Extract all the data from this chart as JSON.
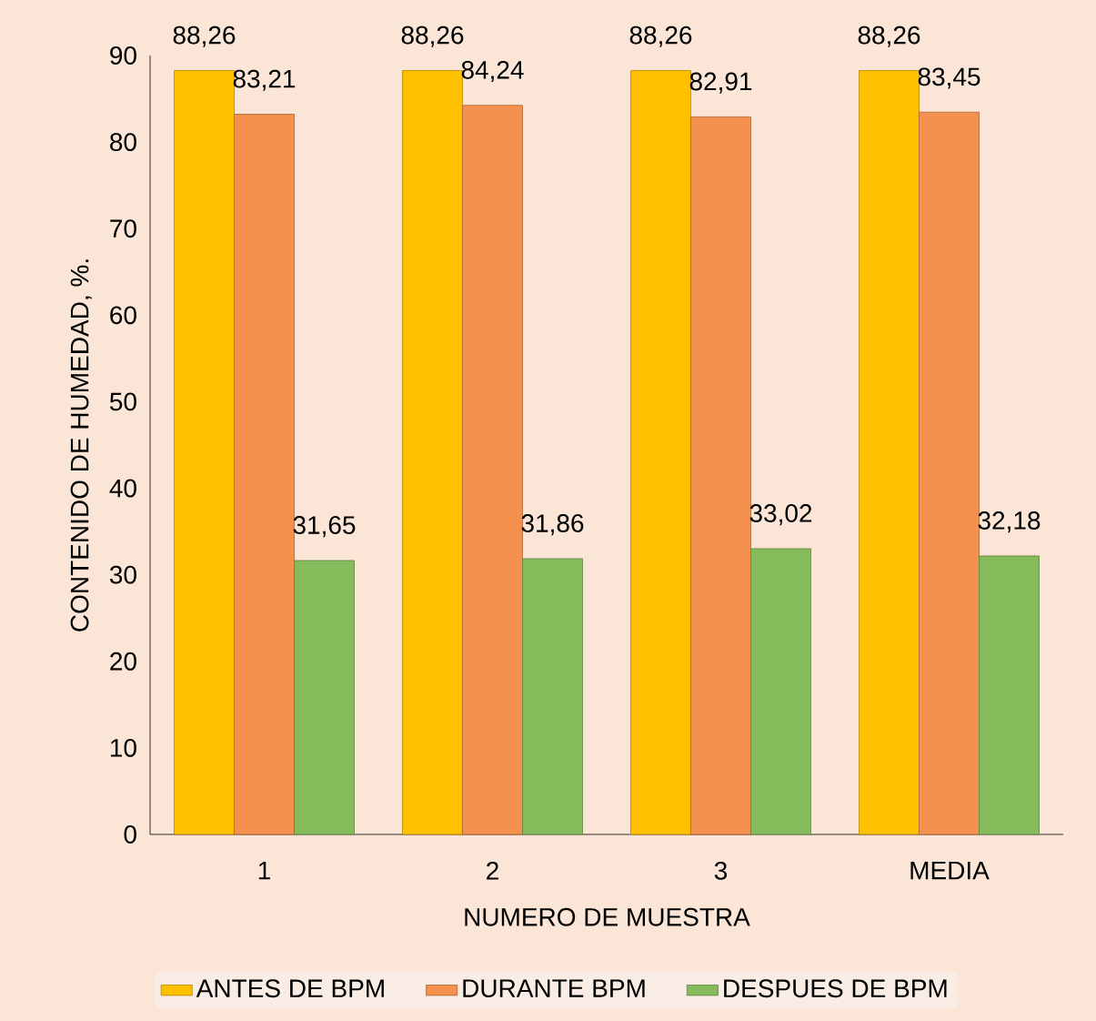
{
  "chart_data": {
    "type": "bar",
    "xlabel": "NUMERO DE MUESTRA",
    "ylabel": "CONTENIDO DE HUMEDAD, %.",
    "categories": [
      "1",
      "2",
      "3",
      "MEDIA"
    ],
    "series": [
      {
        "name": "ANTES DE BPM",
        "color": "#ffc000",
        "values": [
          88.26,
          88.26,
          88.26,
          88.26
        ],
        "value_labels": [
          "88,26",
          "88,26",
          "88,26",
          "88,26"
        ]
      },
      {
        "name": "DURANTE BPM",
        "color": "#f4914f",
        "values": [
          83.21,
          84.24,
          82.91,
          83.45
        ],
        "value_labels": [
          "83,21",
          "84,24",
          "82,91",
          "83,45"
        ]
      },
      {
        "name": "DESPUES DE BPM",
        "color": "#86bb5c",
        "values": [
          31.65,
          31.86,
          33.02,
          32.18
        ],
        "value_labels": [
          "31,65",
          "31,86",
          "33,02",
          "32,18"
        ]
      }
    ],
    "ylim": [
      0,
      90
    ],
    "yticks": [
      0,
      10,
      20,
      30,
      40,
      50,
      60,
      70,
      80,
      90
    ],
    "grid": false,
    "legend": "bottom"
  }
}
